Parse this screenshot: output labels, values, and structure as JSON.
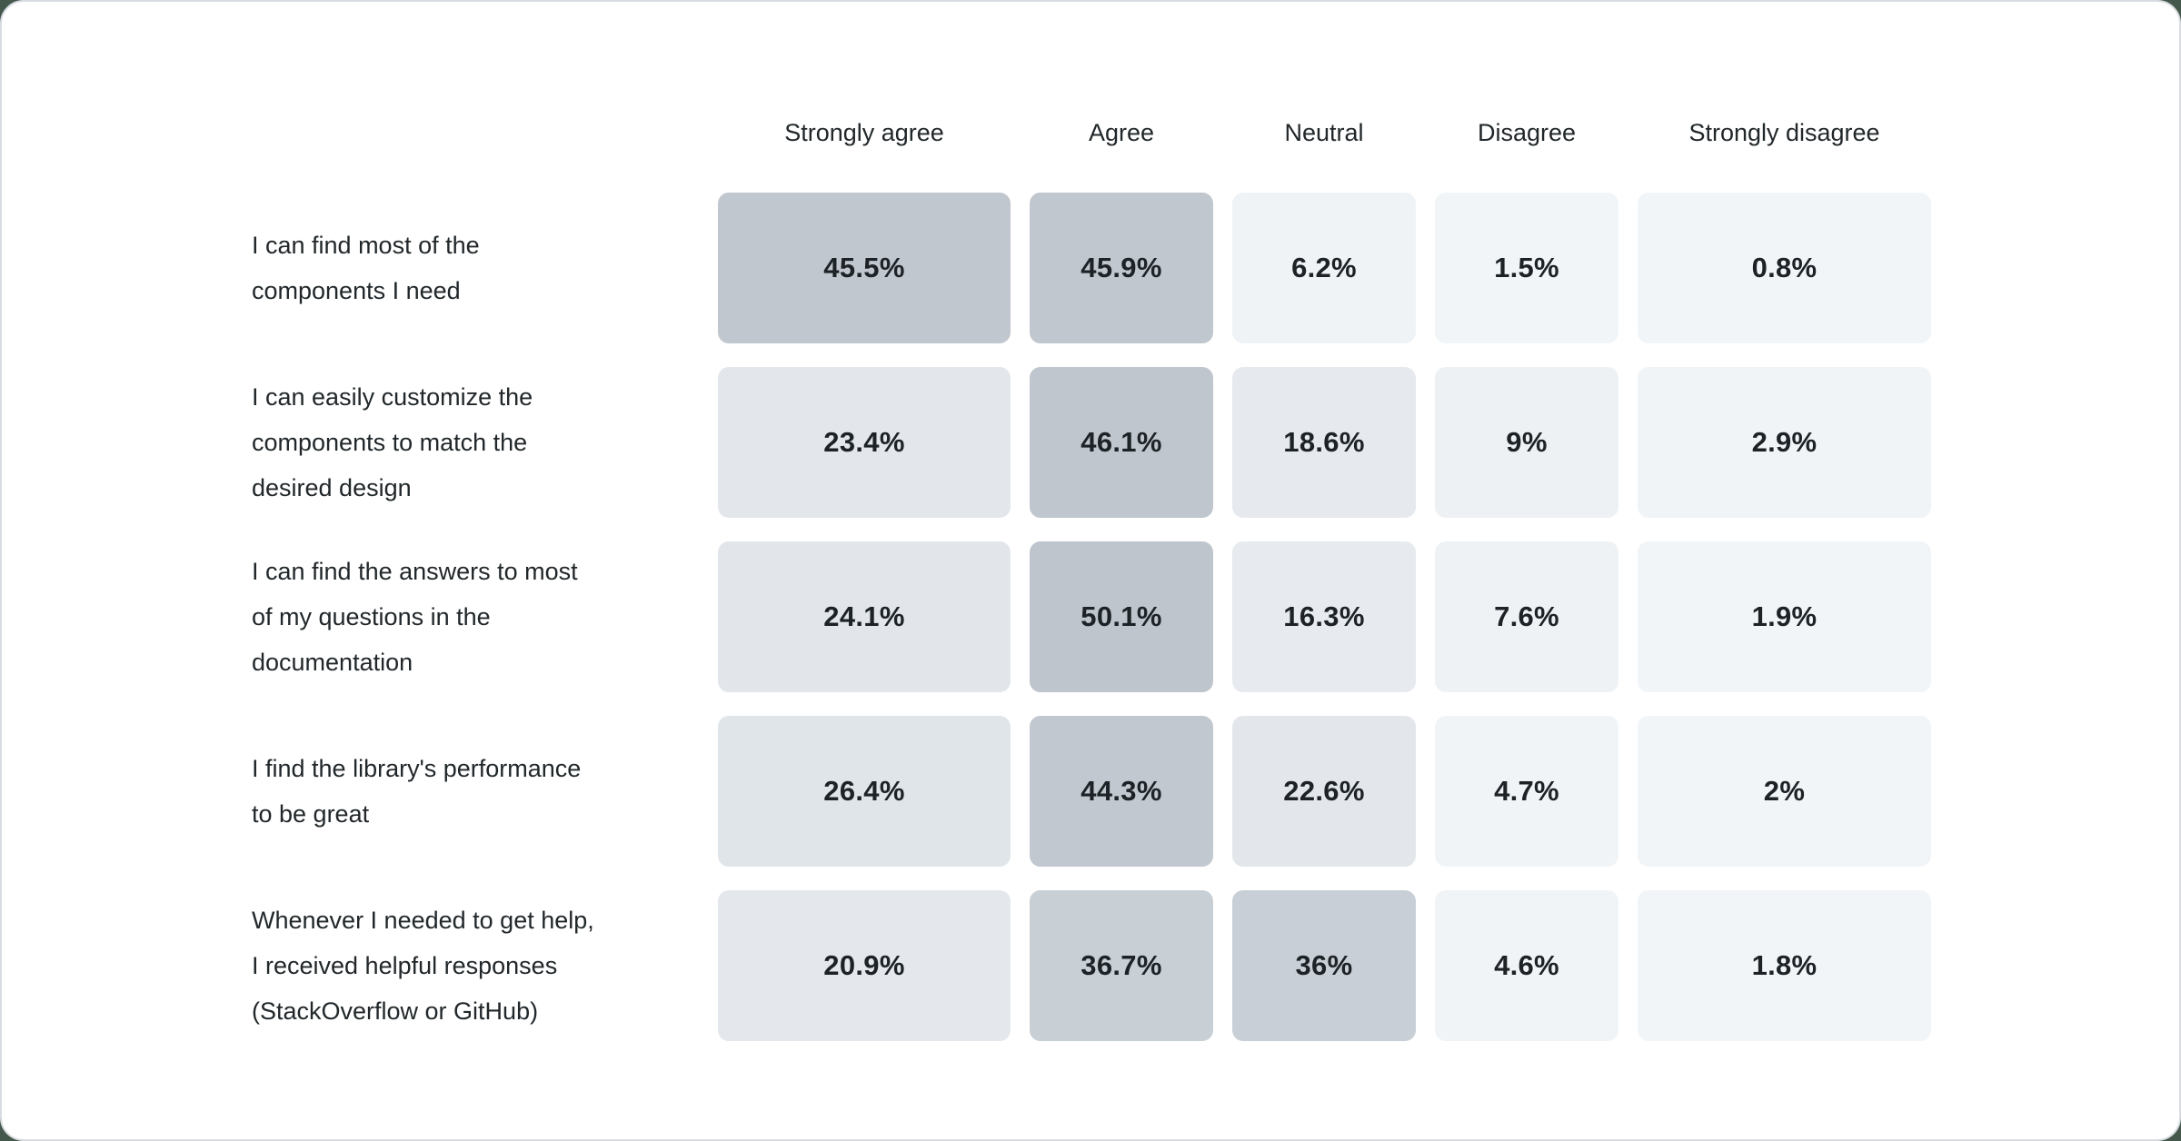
{
  "page": {
    "background": "#44594b",
    "card_background": "#ffffff",
    "card_border": "#d9dde2",
    "text_color": "#21272a"
  },
  "table": {
    "columns": [
      "Strongly agree",
      "Agree",
      "Neutral",
      "Disagree",
      "Strongly disagree"
    ],
    "rows": [
      {
        "label": "I can find most of the\ncomponents I need",
        "cells": [
          {
            "label": "45.5%",
            "color": "#c1c7ce"
          },
          {
            "label": "45.9%",
            "color": "#c0c7ce"
          },
          {
            "label": "6.2%",
            "color": "#f0f3f6"
          },
          {
            "label": "1.5%",
            "color": "#f2f5f8"
          },
          {
            "label": "0.8%",
            "color": "#f2f5f8"
          }
        ]
      },
      {
        "label": "I can easily customize the\ncomponents to match the\ndesired design",
        "cells": [
          {
            "label": "23.4%",
            "color": "#e3e7eb"
          },
          {
            "label": "46.1%",
            "color": "#c0c6cd"
          },
          {
            "label": "18.6%",
            "color": "#e6e9ed"
          },
          {
            "label": "9%",
            "color": "#eef1f4"
          },
          {
            "label": "2.9%",
            "color": "#f1f4f7"
          }
        ]
      },
      {
        "label": "I can find the answers to most\nof my questions in the\ndocumentation",
        "cells": [
          {
            "label": "24.1%",
            "color": "#e2e6ea"
          },
          {
            "label": "50.1%",
            "color": "#bec5cc"
          },
          {
            "label": "16.3%",
            "color": "#e7eaee"
          },
          {
            "label": "7.6%",
            "color": "#eff2f5"
          },
          {
            "label": "1.9%",
            "color": "#f2f5f8"
          }
        ]
      },
      {
        "label": "I find the library's performance\nto be great",
        "cells": [
          {
            "label": "26.4%",
            "color": "#e0e5e9"
          },
          {
            "label": "44.3%",
            "color": "#c1c8cf"
          },
          {
            "label": "22.6%",
            "color": "#e3e7eb"
          },
          {
            "label": "4.7%",
            "color": "#f1f4f7"
          },
          {
            "label": "2%",
            "color": "#f2f5f8"
          }
        ]
      },
      {
        "label": "Whenever I needed to get help,\nI received helpful responses\n(StackOverflow or GitHub)",
        "cells": [
          {
            "label": "20.9%",
            "color": "#e4e8ec"
          },
          {
            "label": "36.7%",
            "color": "#c8cfd5"
          },
          {
            "label": "36%",
            "color": "#c9cfd6"
          },
          {
            "label": "4.6%",
            "color": "#f1f4f7"
          },
          {
            "label": "1.8%",
            "color": "#f2f5f8"
          }
        ]
      }
    ]
  },
  "chart_data": {
    "type": "heatmap",
    "title": "",
    "columns": [
      "Strongly agree",
      "Agree",
      "Neutral",
      "Disagree",
      "Strongly disagree"
    ],
    "rows": [
      "I can find most of the components I need",
      "I can easily customize the components to match the desired design",
      "I can find the answers to most of my questions in the documentation",
      "I find the library's performance to be great",
      "Whenever I needed to get help, I received helpful responses (StackOverflow or GitHub)"
    ],
    "values": [
      [
        45.5,
        45.9,
        6.2,
        1.5,
        0.8
      ],
      [
        23.4,
        46.1,
        18.6,
        9,
        2.9
      ],
      [
        24.1,
        50.1,
        16.3,
        7.6,
        1.9
      ],
      [
        26.4,
        44.3,
        22.6,
        4.7,
        2
      ],
      [
        20.9,
        36.7,
        36,
        4.6,
        1.8
      ]
    ],
    "unit": "%",
    "value_range": [
      0,
      50.1
    ],
    "color_scale": {
      "low": "#f2f5f8",
      "high": "#bec5cc"
    },
    "grid": false,
    "legend": "none"
  }
}
